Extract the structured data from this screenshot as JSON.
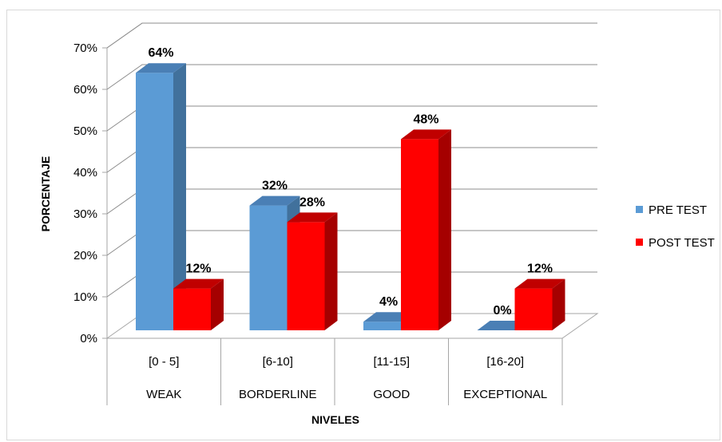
{
  "chart_data": {
    "type": "bar",
    "categories": [
      "[0 - 5]",
      "[6-10]",
      "[11-15]",
      "[16-20]"
    ],
    "category_groups": [
      "WEAK",
      "BORDERLINE",
      "GOOD",
      "EXCEPTIONAL"
    ],
    "series": [
      {
        "name": "PRE TEST",
        "values": [
          64,
          32,
          4,
          0
        ],
        "color": "#5b9bd5",
        "side_color": "#41719c",
        "top_color": "#4a7fb5"
      },
      {
        "name": "POST TEST",
        "values": [
          12,
          28,
          48,
          12
        ],
        "color": "#ff0000",
        "side_color": "#a50000",
        "top_color": "#c00000"
      }
    ],
    "data_labels": [
      [
        "64%",
        "32%",
        "4%",
        "0%"
      ],
      [
        "12%",
        "28%",
        "48%",
        "12%"
      ]
    ],
    "y_ticks": [
      "0%",
      "10%",
      "20%",
      "30%",
      "40%",
      "50%",
      "60%",
      "70%"
    ],
    "ylim": [
      0,
      70
    ],
    "xlabel": "NIVELES",
    "ylabel": "PORCENTAJE",
    "grid": true,
    "legend_position": "right",
    "style": "3d-clustered-column"
  }
}
